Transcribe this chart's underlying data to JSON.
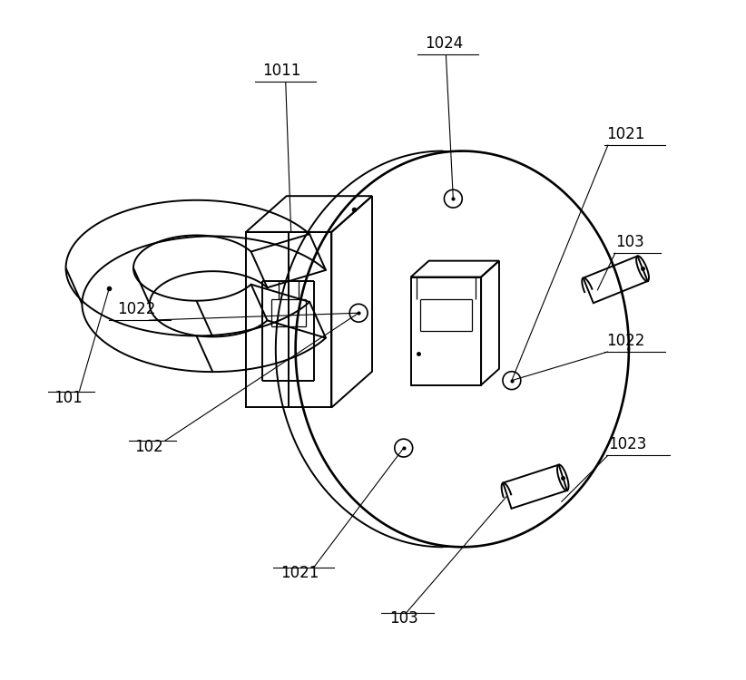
{
  "bg_color": "#ffffff",
  "line_color": "#000000",
  "lw": 1.4,
  "tlw": 0.9,
  "fig_width": 8.22,
  "fig_height": 7.5,
  "font_size": 12
}
